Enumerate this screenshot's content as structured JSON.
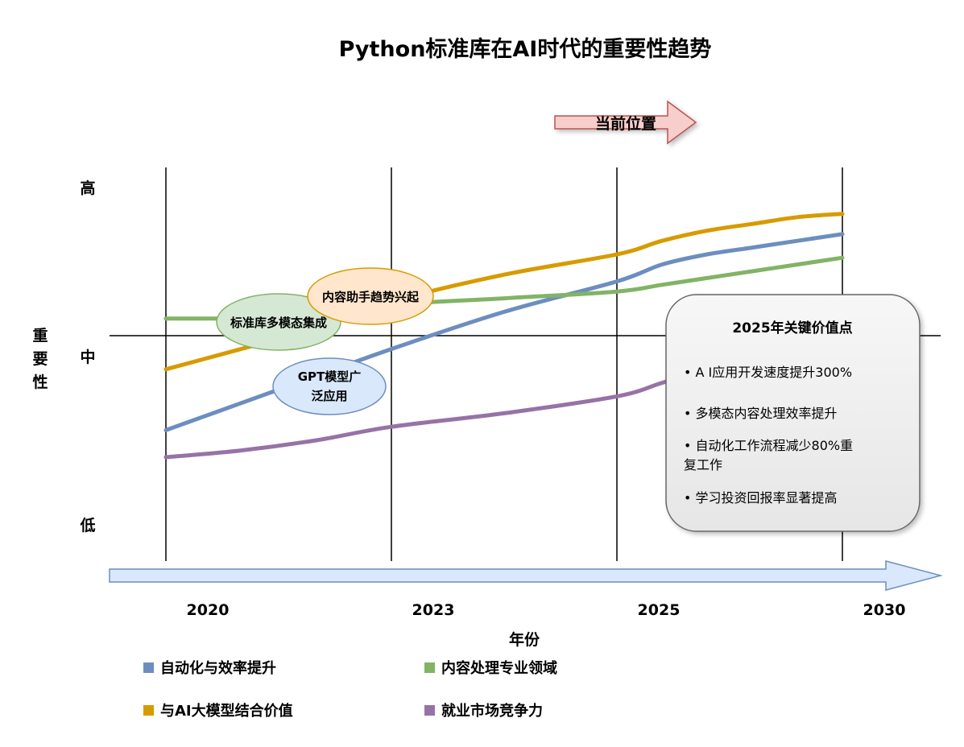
{
  "chart_data": {
    "type": "line",
    "title": "Python标准库在AI时代的重要性趋势",
    "xlabel": "年份",
    "ylabel": "重要性",
    "categories": [
      "2020",
      "2023",
      "2025",
      "2030"
    ],
    "y_levels": [
      "高",
      "中",
      "低"
    ],
    "current_marker": "当前位置",
    "series": [
      {
        "name": "自动化与效率提升",
        "color": "#6c8ebf",
        "x": [
          2020,
          2021,
          2022,
          2023,
          2024,
          2025,
          2026,
          2027,
          2028,
          2029,
          2030
        ],
        "y": [
          0.28,
          0.36,
          0.44,
          0.52,
          0.63,
          0.72,
          0.77,
          0.8,
          0.82,
          0.84,
          0.86
        ]
      },
      {
        "name": "内容处理专业领域",
        "color": "#82b366",
        "x": [
          2020,
          2021,
          2022,
          2023,
          2024,
          2025,
          2026,
          2027,
          2028,
          2029,
          2030
        ],
        "y": [
          0.61,
          0.61,
          0.61,
          0.65,
          0.67,
          0.69,
          0.71,
          0.73,
          0.75,
          0.77,
          0.79
        ]
      },
      {
        "name": "与AI大模型结合价值",
        "color": "#d79b00",
        "x": [
          2020,
          2021,
          2022,
          2023,
          2024,
          2025,
          2026,
          2027,
          2028,
          2029,
          2030
        ],
        "y": [
          0.46,
          0.52,
          0.58,
          0.66,
          0.74,
          0.8,
          0.84,
          0.87,
          0.89,
          0.91,
          0.92
        ]
      },
      {
        "name": "就业市场竞争力",
        "color": "#9673a6",
        "x": [
          2020,
          2021,
          2022,
          2023,
          2024,
          2025,
          2026,
          2027,
          2028,
          2029,
          2030
        ],
        "y": [
          0.2,
          0.22,
          0.25,
          0.29,
          0.33,
          0.38,
          0.42,
          0.46,
          0.48,
          0.5,
          0.52
        ]
      }
    ],
    "annotations": [
      "标准库多模态集成",
      "内容助手趋势兴起",
      "GPT模型广泛应用"
    ],
    "key_points": {
      "title": "2025年关键价值点",
      "items": [
        "• A I应用开发速度提升300%",
        "• 多模态内容处理效率提升",
        "• 自动化工作流程减少80%重复工作",
        "• 学习投资回报率显著提高"
      ]
    },
    "legend": {
      "placement": "bottom"
    }
  }
}
